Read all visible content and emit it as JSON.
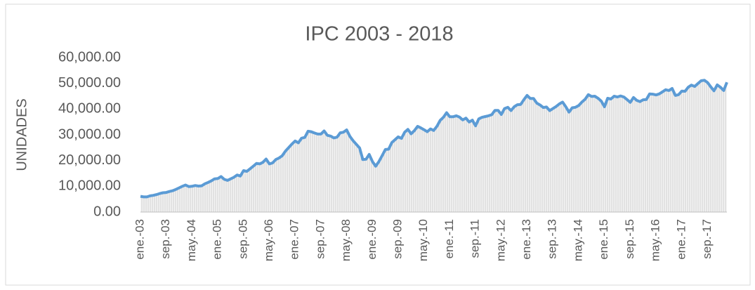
{
  "chart_data": {
    "type": "line",
    "title": "IPC 2003 - 2018",
    "y_label": "UNIDADES",
    "categories": [
      "ene.-03",
      null,
      null,
      null,
      null,
      null,
      null,
      null,
      "sep.-03",
      null,
      null,
      null,
      null,
      null,
      null,
      null,
      "may.-04",
      null,
      null,
      null,
      null,
      null,
      null,
      null,
      "ene.-05",
      null,
      null,
      null,
      null,
      null,
      null,
      null,
      "sep.-05",
      null,
      null,
      null,
      null,
      null,
      null,
      null,
      "may.-06",
      null,
      null,
      null,
      null,
      null,
      null,
      null,
      "ene.-07",
      null,
      null,
      null,
      null,
      null,
      null,
      null,
      "sep.-07",
      null,
      null,
      null,
      null,
      null,
      null,
      null,
      "may.-08",
      null,
      null,
      null,
      null,
      null,
      null,
      null,
      "ene.-09",
      null,
      null,
      null,
      null,
      null,
      null,
      null,
      "sep.-09",
      null,
      null,
      null,
      null,
      null,
      null,
      null,
      "may.-10",
      null,
      null,
      null,
      null,
      null,
      null,
      null,
      "ene.-11",
      null,
      null,
      null,
      null,
      null,
      null,
      null,
      "sep.-11",
      null,
      null,
      null,
      null,
      null,
      null,
      null,
      "may.-12",
      null,
      null,
      null,
      null,
      null,
      null,
      null,
      "ene.-13",
      null,
      null,
      null,
      null,
      null,
      null,
      null,
      "sep.-13",
      null,
      null,
      null,
      null,
      null,
      null,
      null,
      "may.-14",
      null,
      null,
      null,
      null,
      null,
      null,
      null,
      "ene.-15",
      null,
      null,
      null,
      null,
      null,
      null,
      null,
      "sep.-15",
      null,
      null,
      null,
      null,
      null,
      null,
      null,
      "may.-16",
      null,
      null,
      null,
      null,
      null,
      null,
      null,
      "ene.-17",
      null,
      null,
      null,
      null,
      null,
      null,
      null,
      "sep.-17",
      null,
      null,
      null,
      null,
      null,
      null
    ],
    "values": [
      6100,
      5900,
      5900,
      6300,
      6500,
      6800,
      7200,
      7500,
      7600,
      8000,
      8300,
      8800,
      9400,
      10000,
      10500,
      9900,
      10000,
      10300,
      10100,
      10200,
      11000,
      11500,
      12100,
      12900,
      13000,
      13800,
      12700,
      12300,
      12900,
      13500,
      14400,
      14000,
      16100,
      15800,
      16800,
      17800,
      18900,
      18700,
      19300,
      20600,
      18700,
      19100,
      20400,
      21000,
      21900,
      23700,
      25000,
      26400,
      27600,
      26900,
      28700,
      29000,
      31400,
      31200,
      30700,
      30300,
      30300,
      31500,
      29800,
      29500,
      28800,
      29100,
      30800,
      31000,
      31900,
      29400,
      27700,
      26300,
      24900,
      20400,
      20500,
      22400,
      19600,
      17800,
      19600,
      21900,
      24300,
      24400,
      27000,
      28100,
      29200,
      28600,
      31000,
      32100,
      30400,
      31600,
      33300,
      32700,
      32000,
      31200,
      32300,
      31700,
      33300,
      35600,
      36800,
      38600,
      37000,
      37000,
      37400,
      36900,
      35800,
      36500,
      35000,
      35700,
      33500,
      36200,
      36800,
      37100,
      37400,
      37800,
      39500,
      39500,
      37900,
      40200,
      40700,
      39400,
      40900,
      41700,
      41800,
      43700,
      45300,
      44100,
      44100,
      42300,
      41600,
      40600,
      40800,
      39400,
      40200,
      41000,
      42000,
      42700,
      40900,
      38800,
      40500,
      40700,
      41400,
      42700,
      43800,
      45600,
      44900,
      45000,
      44200,
      43100,
      40900,
      44200,
      43900,
      45000,
      44700,
      45100,
      44700,
      43700,
      42600,
      44500,
      43400,
      42900,
      43600,
      43700,
      45900,
      45800,
      45500,
      45900,
      46700,
      47500,
      47200,
      48000,
      45300,
      45600,
      47000,
      46900,
      48500,
      49300,
      48800,
      49900,
      51000,
      51200,
      50300,
      48600,
      47100,
      49400,
      48500,
      47200,
      50400
    ],
    "color": "#5b9bd5",
    "ylim": [
      0,
      60000
    ],
    "yticks": [
      {
        "value": 0,
        "label": "0.00"
      },
      {
        "value": 10000,
        "label": "10,000.00"
      },
      {
        "value": 20000,
        "label": "20,000.00"
      },
      {
        "value": 30000,
        "label": "30,000.00"
      },
      {
        "value": 40000,
        "label": "40,000.00"
      },
      {
        "value": 50000,
        "label": "50,000.00"
      },
      {
        "value": 60000,
        "label": "60,000.00"
      }
    ],
    "grid": false
  }
}
